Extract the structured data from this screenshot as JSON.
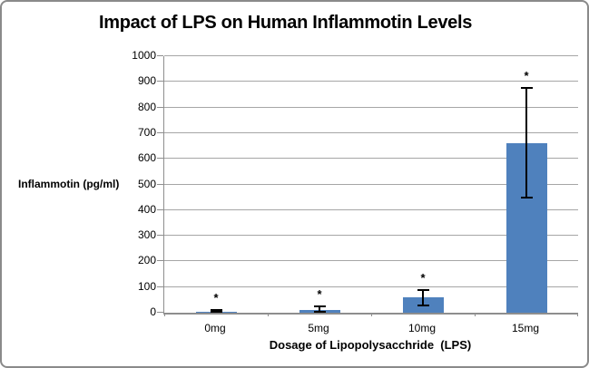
{
  "window": {
    "background_color": "#ffffff",
    "border_color": "#8a8a8a"
  },
  "chart": {
    "title": "Impact of LPS on Human Inflammotin Levels",
    "y_axis_label": "Inflammotin (pg/ml)",
    "x_axis_label": "Dosage of Lipopolysacchride  (LPS)"
  },
  "chart_data": {
    "type": "bar",
    "title": "Impact of LPS on Human Inflammotin Levels",
    "xlabel": "Dosage of Lipopolysacchride  (LPS)",
    "ylabel": "Inflammotin (pg/ml)",
    "categories": [
      "0mg",
      "5mg",
      "10mg",
      "15mg"
    ],
    "values": [
      5,
      10,
      60,
      660
    ],
    "error_bars": [
      {
        "low": 1,
        "high": 12
      },
      {
        "low": 2,
        "high": 25
      },
      {
        "low": 28,
        "high": 88
      },
      {
        "low": 450,
        "high": 875
      }
    ],
    "significance_markers": [
      "*",
      "*",
      "*",
      "*"
    ],
    "ylim": [
      0,
      1000
    ],
    "yticks": [
      0,
      100,
      200,
      300,
      400,
      500,
      600,
      700,
      800,
      900,
      1000
    ],
    "grid": true,
    "legend": false,
    "bar_color": "#4f81bd",
    "gridline_color": "#a6a6a6",
    "axis_color": "#8e8e8e",
    "error_bar_color": "#000000",
    "text_color": "#000000"
  }
}
